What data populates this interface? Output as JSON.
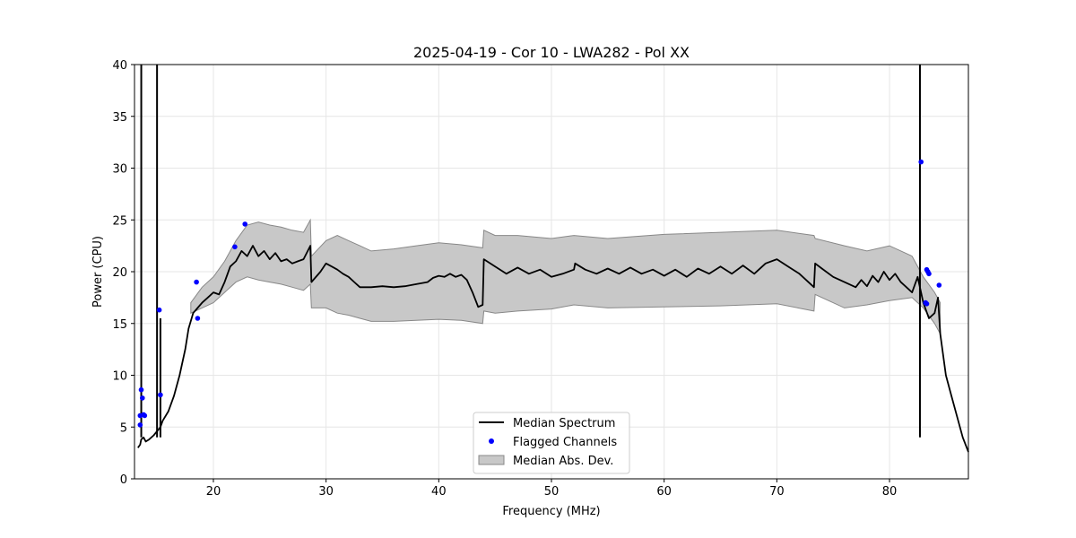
{
  "chart_data": {
    "type": "line",
    "title": "2025-04-19 - Cor 10 - LWA282 - Pol XX",
    "xlabel": "Frequency (MHz)",
    "ylabel": "Power (CPU)",
    "xlim": [
      13,
      87
    ],
    "ylim": [
      0,
      40
    ],
    "xticks": [
      20,
      30,
      40,
      50,
      60,
      70,
      80
    ],
    "yticks": [
      0,
      5,
      10,
      15,
      20,
      25,
      30,
      35,
      40
    ],
    "grid": true,
    "legend_position": "bottom-center",
    "series": [
      {
        "name": "Median Spectrum",
        "kind": "line",
        "color": "#000000",
        "x": [
          13.3,
          13.5,
          13.6,
          13.8,
          14.0,
          14.3,
          14.7,
          15.3,
          15.5,
          16.0,
          16.5,
          17.0,
          17.5,
          17.8,
          18.2,
          18.6,
          19.0,
          19.5,
          20.0,
          20.5,
          21.0,
          21.5,
          22.0,
          22.5,
          23.0,
          23.5,
          24.0,
          24.5,
          25.0,
          25.5,
          26.0,
          26.5,
          27.0,
          27.5,
          28.0,
          28.6,
          28.7,
          29.5,
          30.0,
          30.5,
          31.0,
          31.5,
          32.0,
          32.5,
          33.0,
          34.0,
          35.0,
          36.0,
          37.0,
          38.0,
          39.0,
          39.5,
          40.0,
          40.5,
          41.0,
          41.5,
          42.0,
          42.5,
          43.0,
          43.5,
          43.9,
          44.0,
          45.0,
          46.0,
          47.0,
          48.0,
          49.0,
          50.0,
          51.0,
          52.0,
          52.1,
          53.0,
          54.0,
          55.0,
          56.0,
          57.0,
          58.0,
          59.0,
          60.0,
          61.0,
          62.0,
          63.0,
          64.0,
          65.0,
          66.0,
          67.0,
          68.0,
          69.0,
          70.0,
          71.0,
          72.0,
          73.3,
          73.4,
          74.0,
          75.0,
          76.0,
          77.0,
          77.5,
          78.0,
          78.5,
          79.0,
          79.5,
          80.0,
          80.5,
          81.0,
          81.5,
          82.0,
          82.5,
          83.0,
          83.5,
          84.0,
          84.3,
          84.5,
          85.0,
          85.5,
          86.0,
          86.5,
          87.0
        ],
        "y": [
          3.0,
          3.3,
          3.8,
          4.0,
          3.6,
          3.8,
          4.2,
          5.0,
          5.6,
          6.5,
          8.0,
          10.0,
          12.5,
          14.5,
          16.0,
          16.5,
          17.0,
          17.5,
          18.0,
          17.8,
          19.0,
          20.5,
          21.0,
          22.0,
          21.5,
          22.5,
          21.5,
          22.0,
          21.2,
          21.8,
          21.0,
          21.2,
          20.8,
          21.0,
          21.2,
          22.5,
          19.0,
          20.0,
          20.8,
          20.5,
          20.2,
          19.8,
          19.5,
          19.0,
          18.5,
          18.5,
          18.6,
          18.5,
          18.6,
          18.8,
          19.0,
          19.4,
          19.6,
          19.5,
          19.8,
          19.5,
          19.7,
          19.2,
          18.0,
          16.6,
          16.8,
          21.2,
          20.5,
          19.8,
          20.4,
          19.8,
          20.2,
          19.5,
          19.8,
          20.2,
          20.8,
          20.2,
          19.8,
          20.3,
          19.8,
          20.4,
          19.8,
          20.2,
          19.6,
          20.2,
          19.5,
          20.3,
          19.8,
          20.5,
          19.8,
          20.6,
          19.8,
          20.8,
          21.2,
          20.5,
          19.8,
          18.5,
          20.8,
          20.3,
          19.5,
          19.0,
          18.5,
          19.2,
          18.6,
          19.6,
          19.0,
          20.0,
          19.2,
          19.8,
          19.0,
          18.5,
          18.0,
          19.5,
          17.0,
          15.5,
          16.0,
          17.5,
          14.0,
          10.0,
          8.0,
          6.0,
          4.0,
          2.6
        ],
        "spikes": [
          {
            "x": 13.6,
            "y": 40
          },
          {
            "x": 15.0,
            "y": 40
          },
          {
            "x": 15.3,
            "y": 15.5
          },
          {
            "x": 82.7,
            "y": 40
          }
        ]
      },
      {
        "name": "Flagged Channels",
        "kind": "scatter",
        "color": "#0000ff",
        "x": [
          13.5,
          13.6,
          13.7,
          13.5,
          13.8,
          13.9,
          15.2,
          15.3,
          18.5,
          18.6,
          21.9,
          22.8,
          82.8,
          83.2,
          83.3,
          83.4,
          83.5,
          83.3,
          84.4
        ],
        "y": [
          5.2,
          8.6,
          7.8,
          6.1,
          6.2,
          6.1,
          16.3,
          8.1,
          19.0,
          15.5,
          22.4,
          24.6,
          30.6,
          17.0,
          20.2,
          20.0,
          19.8,
          16.9,
          18.7
        ]
      },
      {
        "name": "Median Abs. Dev.",
        "kind": "band",
        "color": "#c8c8c8",
        "edge_color": "#888888",
        "x": [
          18.0,
          19.0,
          20.0,
          21.0,
          22.0,
          23.0,
          24.0,
          25.0,
          26.0,
          27.0,
          28.0,
          28.6,
          28.7,
          30.0,
          31.0,
          32.0,
          33.0,
          34.0,
          36.0,
          38.0,
          40.0,
          42.0,
          43.9,
          44.0,
          45.0,
          47.0,
          50.0,
          52.0,
          55.0,
          60.0,
          65.0,
          70.0,
          73.3,
          73.4,
          76.0,
          78.0,
          80.0,
          82.0,
          83.0,
          84.0,
          84.5
        ],
        "lower": [
          16.0,
          16.5,
          17.0,
          18.0,
          19.0,
          19.5,
          19.2,
          19.0,
          18.8,
          18.5,
          18.2,
          18.8,
          16.5,
          16.5,
          16.0,
          15.8,
          15.5,
          15.2,
          15.2,
          15.3,
          15.4,
          15.3,
          15.0,
          16.2,
          16.0,
          16.2,
          16.4,
          16.8,
          16.5,
          16.6,
          16.7,
          16.9,
          16.2,
          17.8,
          16.5,
          16.8,
          17.2,
          17.5,
          16.5,
          15.0,
          14.0
        ],
        "upper": [
          17.0,
          18.5,
          19.5,
          21.0,
          23.0,
          24.5,
          24.8,
          24.5,
          24.3,
          24.0,
          23.8,
          25.0,
          21.5,
          23.0,
          23.5,
          23.0,
          22.5,
          22.0,
          22.2,
          22.5,
          22.8,
          22.6,
          22.3,
          24.0,
          23.5,
          23.5,
          23.2,
          23.5,
          23.2,
          23.6,
          23.8,
          24.0,
          23.5,
          23.2,
          22.5,
          22.0,
          22.5,
          21.5,
          19.5,
          18.0,
          17.0
        ]
      }
    ]
  }
}
